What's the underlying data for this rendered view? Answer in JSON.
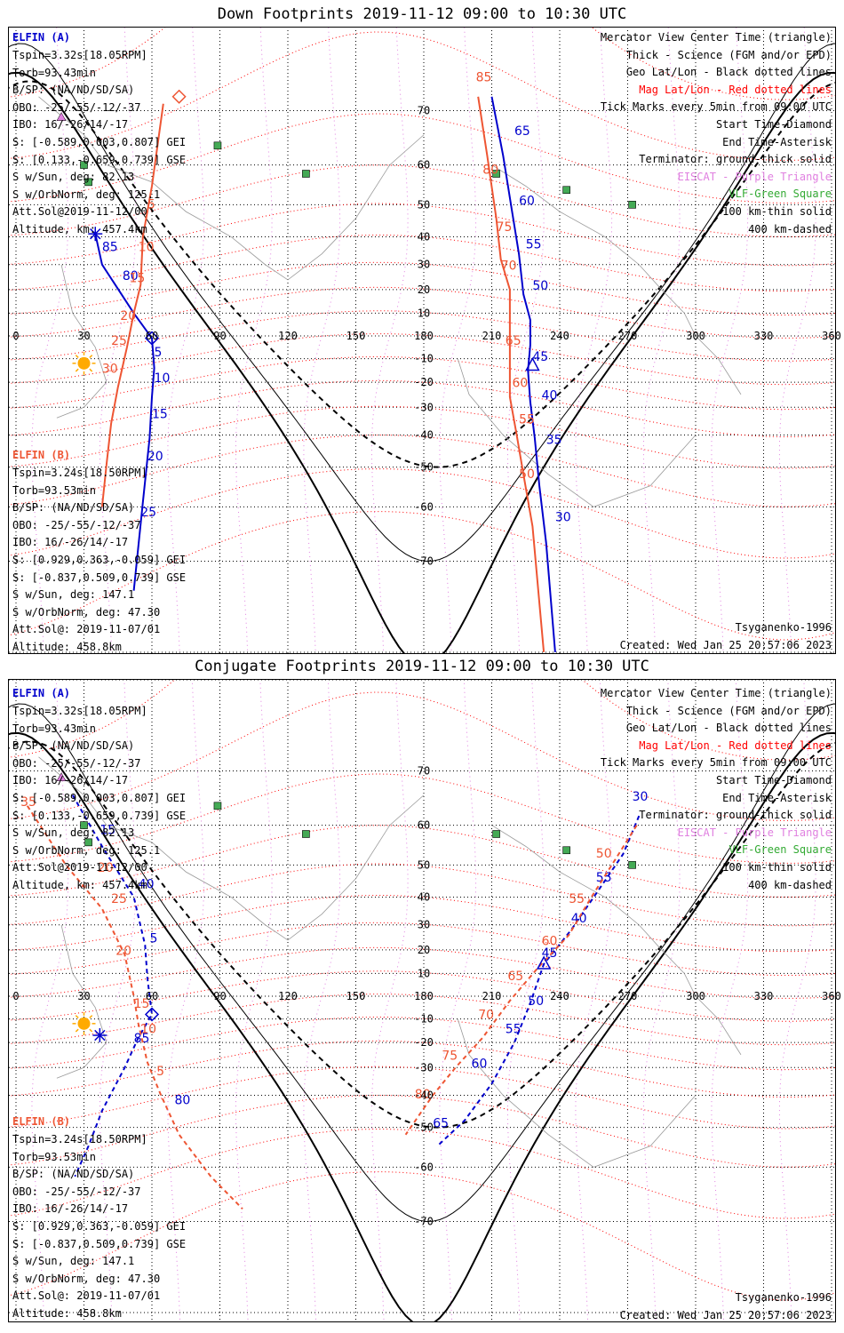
{
  "panels": [
    {
      "title": "Down Footprints 2019-11-12 09:00 to 10:30 UTC",
      "left": {
        "sat_a": "ELFIN (A)",
        "a_lines": [
          "Tspin=3.32s[18.05RPM]",
          "Torb=93.43min",
          "B/SP: (NA/ND/SD/SA)",
          "OBO: -25/-55/-12/-37",
          "IBO: 16/-26/14/-17",
          "S: [-0.589,0.003,0.807] GEI",
          "S: [0.133,-0.659,0.739] GSE",
          "S w/Sun, deg: 82.13",
          "S w/OrbNorm, deg: 125.1",
          "Att.Sol@2019-11-12/00",
          "Altitude, km: 457.4km"
        ],
        "sat_b": "ELFIN (B)",
        "b_lines": [
          "Tspin=3.24s[18.50RPM]",
          "Torb=93.53min",
          "B/SP: (NA/ND/SD/SA)",
          "OBO: -25/-55/-12/-37",
          "IBO: 16/-26/14/-17",
          "S: [0.929,0.363,-0.059] GEI",
          "S: [-0.837,0.509,0.739] GSE",
          "S w/Sun, deg: 147.1",
          "S w/OrbNorm, deg: 47.30",
          "Att.Sol@: 2019-11-07/01",
          "Altitude: 458.8km"
        ]
      },
      "right": [
        "Mercator View Center Time (triangle)",
        "Thick - Science (FGM and/or EPD)",
        "Geo Lat/Lon - Black dotted lines",
        "Mag Lat/Lon - Red dotted lines",
        "Tick Marks every 5min from 09:00 UTC",
        "Start Time-Diamond",
        "End Time-Asterisk",
        "Terminator: ground-thick solid",
        "EISCAT - Purple Triangle",
        "VLF-Green Square",
        "100 km-thin solid",
        "400 km-dashed"
      ],
      "model": "Tsyganenko-1996",
      "created": "Created: Wed Jan 25 20:57:06 2023"
    },
    {
      "title": "Conjugate Footprints 2019-11-12 09:00 to 10:30 UTC",
      "left": {
        "sat_a": "ELFIN (A)",
        "a_lines": [
          "Tspin=3.32s[18.05RPM]",
          "Torb=93.43min",
          "B/SP: (NA/ND/SD/SA)",
          "OBO: -25/-55/-12/-37",
          "IBO: 16/-26/14/-17",
          "S: [-0.589,0.003,0.807] GEI",
          "S: [0.133,-0.659,0.739] GSE",
          "S w/Sun, deg: 82.13",
          "S w/OrbNorm, deg: 125.1",
          "Att.Sol@2019-11-12/00",
          "Altitude, km: 457.4km"
        ],
        "sat_b": "ELFIN (B)",
        "b_lines": [
          "Tspin=3.24s[18.50RPM]",
          "Torb=93.53min",
          "B/SP: (NA/ND/SD/SA)",
          "OBO: -25/-55/-12/-37",
          "IBO: 16/-26/14/-17",
          "S: [0.929,0.363,-0.059] GEI",
          "S: [-0.837,0.509,0.739] GSE",
          "S w/Sun, deg: 147.1",
          "S w/OrbNorm, deg: 47.30",
          "Att.Sol@: 2019-11-07/01",
          "Altitude: 458.8km"
        ]
      },
      "right": [
        "Mercator View Center Time (triangle)",
        "Thick - Science (FGM and/or EPD)",
        "Geo Lat/Lon - Black dotted lines",
        "Mag Lat/Lon - Red dotted lines",
        "Tick Marks every 5min from 09:00 UTC",
        "Start Time-Diamond",
        "End Time-Asterisk",
        "Terminator: ground-thick solid",
        "EISCAT - Purple Triangle",
        "VLF-Green Square",
        "100 km-thin solid",
        "400 km-dashed"
      ],
      "model": "Tsyganenko-1996",
      "created": "Created: Wed Jan 25 20:57:06 2023"
    }
  ],
  "colors": {
    "sat_a": "#0000cc",
    "sat_b": "#ee5533",
    "mag_grid": "#ff0000",
    "geo_grid": "#000000",
    "eiscat": "#e080e0",
    "vlf": "#44aa55",
    "sun": "#ffaa00"
  },
  "chart_data": [
    {
      "type": "line",
      "panel": "down",
      "projection": "mercator",
      "xlim": [
        0,
        360
      ],
      "x_ticks": [
        0,
        30,
        60,
        90,
        120,
        150,
        180,
        210,
        240,
        270,
        300,
        330,
        360
      ],
      "y_ticks": [
        70,
        60,
        50,
        40,
        30,
        20,
        10,
        0,
        -10,
        -20,
        -30,
        -40,
        -50,
        -60,
        -70
      ],
      "series": [
        {
          "name": "ELFIN (A)",
          "points": [
            [
              35,
              41
            ],
            [
              38,
              30
            ],
            [
              52,
              10
            ],
            [
              60,
              -1
            ],
            [
              61,
              -14
            ],
            [
              60,
              -26
            ],
            [
              59,
              -41
            ],
            [
              56,
              -59
            ],
            [
              52,
              -74
            ]
          ],
          "tick_labels": [
            [
              "85",
              38,
              35
            ],
            [
              "80",
              47,
              24
            ],
            [
              "5",
              61,
              -9
            ],
            [
              "10",
              61,
              -20
            ],
            [
              "15",
              60,
              -34
            ],
            [
              "20",
              58,
              -48
            ],
            [
              "25",
              55,
              -62
            ]
          ]
        },
        {
          "name": "ELFIN (A)",
          "points": [
            [
              210,
              72
            ],
            [
              215,
              62
            ],
            [
              219,
              48
            ],
            [
              222,
              34
            ],
            [
              224,
              18
            ],
            [
              227,
              7
            ],
            [
              227,
              -4
            ],
            [
              226,
              -15
            ],
            [
              227,
              -28
            ],
            [
              229,
              -41
            ],
            [
              231,
              -55
            ],
            [
              234,
              -67
            ],
            [
              238,
              -80
            ]
          ],
          "tick_labels": [
            [
              "65",
              220,
              66
            ],
            [
              "60",
              222,
              50
            ],
            [
              "55",
              225,
              36
            ],
            [
              "50",
              228,
              20
            ],
            [
              "45",
              228,
              -11
            ],
            [
              "40",
              232,
              -27
            ],
            [
              "35",
              234,
              -43
            ],
            [
              "30",
              238,
              -63
            ]
          ]
        },
        {
          "name": "ELFIN (B)",
          "points": [
            [
              65,
              71
            ],
            [
              60,
              55
            ],
            [
              56,
              40
            ],
            [
              55,
              22
            ],
            [
              52,
              10
            ],
            [
              49,
              -5
            ],
            [
              45,
              -22
            ],
            [
              42,
              -36
            ],
            [
              40,
              -49
            ],
            [
              38,
              -60
            ]
          ],
          "tick_labels": [
            [
              "5",
              58,
              49
            ],
            [
              "10",
              54,
              35
            ],
            [
              "15",
              50,
              23
            ],
            [
              "20",
              46,
              7
            ],
            [
              "25",
              42,
              -4
            ],
            [
              "30",
              38,
              -16
            ]
          ]
        },
        {
          "name": "ELFIN (B)",
          "points": [
            [
              204,
              72
            ],
            [
              208,
              62
            ],
            [
              212,
              46
            ],
            [
              214,
              32
            ],
            [
              218,
              20
            ],
            [
              218,
              8
            ],
            [
              218,
              -10
            ],
            [
              218,
              -26
            ],
            [
              221,
              -40
            ],
            [
              224,
              -52
            ],
            [
              228,
              -64
            ],
            [
              233,
              -80
            ]
          ],
          "tick_labels": [
            [
              "85",
              203,
              74
            ],
            [
              "80",
              206,
              58
            ],
            [
              "75",
              212,
              42
            ],
            [
              "70",
              214,
              28
            ],
            [
              "65",
              216,
              -4
            ],
            [
              "60",
              219,
              -22
            ],
            [
              "55",
              222,
              -36
            ],
            [
              "50",
              222,
              -53
            ]
          ]
        }
      ]
    },
    {
      "type": "line",
      "panel": "conjugate",
      "projection": "mercator",
      "xlim": [
        0,
        360
      ],
      "x_ticks": [
        0,
        30,
        60,
        90,
        120,
        150,
        180,
        210,
        240,
        270,
        300,
        330,
        360
      ],
      "y_ticks": [
        70,
        60,
        50,
        40,
        30,
        20,
        10,
        0,
        -10,
        -20,
        -30,
        -40,
        -50,
        -60,
        -70
      ],
      "series": [
        {
          "name": "ELFIN (A)",
          "points": [
            [
              25,
              66
            ],
            [
              38,
              55
            ],
            [
              52,
              40
            ],
            [
              57,
              22
            ],
            [
              58,
              8
            ],
            [
              60,
              -8
            ],
            [
              54,
              -18
            ],
            [
              48,
              -30
            ],
            [
              38,
              -45
            ],
            [
              32,
              -55
            ],
            [
              26,
              -62
            ]
          ],
          "tick_labels": [
            [
              "15",
              37,
              58
            ],
            [
              "40",
              54,
              43
            ],
            [
              "5",
              59,
              23
            ],
            [
              "85",
              52,
              -20
            ],
            [
              "80",
              70,
              -43
            ]
          ]
        },
        {
          "name": "ELFIN (A)",
          "points": [
            [
              275,
              62
            ],
            [
              268,
              53
            ],
            [
              255,
              40
            ],
            [
              245,
              28
            ],
            [
              233,
              14
            ],
            [
              227,
              -3
            ],
            [
              220,
              -20
            ],
            [
              210,
              -36
            ],
            [
              198,
              -48
            ],
            [
              186,
              -55
            ]
          ],
          "tick_labels": [
            [
              "30",
              272,
              65
            ],
            [
              "55",
              256,
              45
            ],
            [
              "40",
              245,
              31
            ],
            [
              "45",
              232,
              17
            ],
            [
              "50",
              226,
              -4
            ],
            [
              "55",
              216,
              -16
            ],
            [
              "60",
              201,
              -30
            ],
            [
              "65",
              184,
              -50
            ]
          ]
        },
        {
          "name": "ELFIN (B)",
          "points": [
            [
              5,
              64
            ],
            [
              22,
              50
            ],
            [
              38,
              36
            ],
            [
              48,
              18
            ],
            [
              52,
              0
            ],
            [
              54,
              -12
            ],
            [
              58,
              -28
            ],
            [
              64,
              -40
            ],
            [
              72,
              -52
            ],
            [
              86,
              -62
            ],
            [
              100,
              -68
            ]
          ],
          "tick_labels": [
            [
              "35",
              2,
              64
            ],
            [
              "20",
              36,
              48
            ],
            [
              "25",
              42,
              38
            ],
            [
              "20",
              44,
              18
            ],
            [
              "15",
              52,
              -5
            ],
            [
              "10",
              55,
              -16
            ],
            [
              "5",
              62,
              -33
            ]
          ]
        },
        {
          "name": "ELFIN (B)",
          "points": [
            [
              274,
              60
            ],
            [
              265,
              52
            ],
            [
              254,
              40
            ],
            [
              244,
              26
            ],
            [
              230,
              12
            ],
            [
              218,
              -2
            ],
            [
              206,
              -18
            ],
            [
              194,
              -30
            ],
            [
              184,
              -40
            ],
            [
              172,
              -52
            ]
          ],
          "tick_labels": [
            [
              "50",
              256,
              52
            ],
            [
              "55",
              244,
              38
            ],
            [
              "60",
              232,
              22
            ],
            [
              "65",
              217,
              7
            ],
            [
              "70",
              204,
              -10
            ],
            [
              "75",
              188,
              -27
            ],
            [
              "80",
              176,
              -41
            ]
          ]
        }
      ]
    }
  ]
}
